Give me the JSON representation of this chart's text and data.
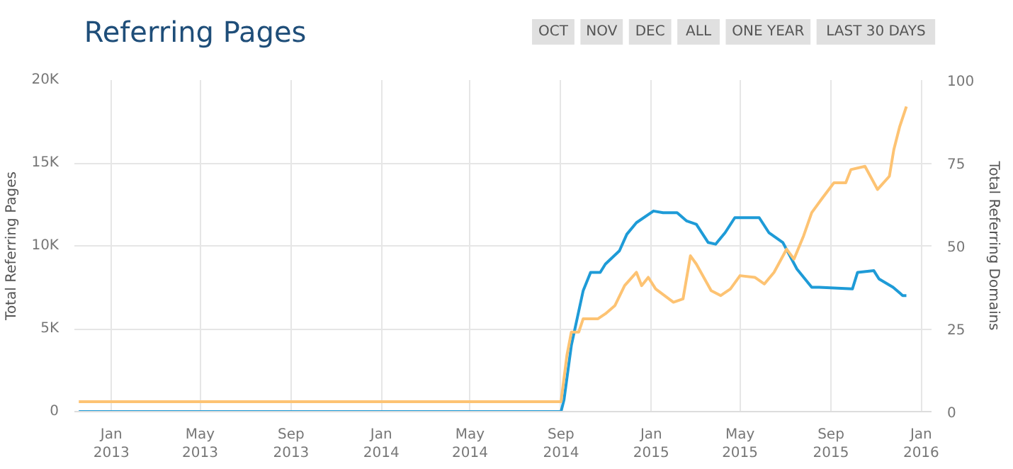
{
  "chart_data": {
    "type": "line",
    "title": "Referring Pages",
    "annotations": [
      "OCT",
      "NOV",
      "DEC",
      "ALL",
      "ONE YEAR",
      "LAST 30 DAYS"
    ],
    "ylabel": "Total Referring Pages",
    "y2label": "Total Referring Domains",
    "xlim": [
      "2012-11-12",
      "2016-01-15"
    ],
    "xticks": [
      {
        "value": "2013-01-01",
        "label": "Jan\n2013"
      },
      {
        "value": "2013-05-01",
        "label": "May\n2013"
      },
      {
        "value": "2013-09-01",
        "label": "Sep\n2013"
      },
      {
        "value": "2014-01-01",
        "label": "Jan\n2014"
      },
      {
        "value": "2014-05-01",
        "label": "May\n2014"
      },
      {
        "value": "2014-09-01",
        "label": "Sep\n2014"
      },
      {
        "value": "2015-01-01",
        "label": "Jan\n2015"
      },
      {
        "value": "2015-05-01",
        "label": "May\n2015"
      },
      {
        "value": "2015-09-01",
        "label": "Sep\n2015"
      },
      {
        "value": "2016-01-01",
        "label": "Jan\n2016"
      }
    ],
    "ylim": [
      0,
      20000
    ],
    "yticks": [
      0,
      {
        "value": 5000,
        "label": "5K"
      },
      {
        "value": 10000,
        "label": "10K"
      },
      {
        "value": 15000,
        "label": "15K"
      },
      {
        "value": 20000,
        "label": "20K"
      }
    ],
    "y2lim": [
      0,
      100
    ],
    "y2ticks": [
      0,
      25,
      50,
      75,
      100
    ],
    "grid": true,
    "marker": "none",
    "line_style": "solid",
    "series": [
      {
        "color": "#1e9bd7",
        "x": [
          "2012-11-18",
          "2014-09-01",
          "2014-09-05",
          "2014-09-15",
          "2014-10-01",
          "2014-10-11",
          "2014-10-24",
          "2014-10-31",
          "2014-11-19",
          "2014-11-29",
          "2014-12-12",
          "2015-01-04",
          "2015-01-17",
          "2015-02-05",
          "2015-02-18",
          "2015-03-03",
          "2015-03-19",
          "2015-03-29",
          "2015-04-11",
          "2015-04-24",
          "2015-05-27",
          "2015-06-09",
          "2015-06-28",
          "2015-07-17",
          "2015-08-06",
          "2015-08-16",
          "2015-09-30",
          "2015-10-07",
          "2015-10-29",
          "2015-11-05",
          "2015-11-24",
          "2015-12-07",
          "2015-12-12"
        ],
        "values": [
          0,
          0,
          700,
          4000,
          7300,
          8400,
          8400,
          8900,
          9700,
          10700,
          11400,
          12100,
          12000,
          12000,
          11500,
          11300,
          10200,
          10100,
          10800,
          11700,
          11700,
          10800,
          10200,
          8600,
          7500,
          7500,
          7400,
          8400,
          8500,
          8000,
          7500,
          7000,
          7000
        ]
      },
      {
        "color": "#fdc373",
        "axis": "y2",
        "x": [
          "2012-11-18",
          "2014-09-01",
          "2014-09-09",
          "2014-09-15",
          "2014-09-25",
          "2014-10-01",
          "2014-10-21",
          "2014-10-31",
          "2014-11-13",
          "2014-11-26",
          "2014-12-12",
          "2014-12-19",
          "2014-12-28",
          "2015-01-07",
          "2015-01-31",
          "2015-02-13",
          "2015-02-23",
          "2015-03-03",
          "2015-03-13",
          "2015-03-23",
          "2015-04-05",
          "2015-04-18",
          "2015-05-01",
          "2015-05-21",
          "2015-06-03",
          "2015-06-16",
          "2015-07-03",
          "2015-07-13",
          "2015-07-26",
          "2015-08-06",
          "2015-08-19",
          "2015-09-05",
          "2015-09-21",
          "2015-09-28",
          "2015-10-17",
          "2015-11-03",
          "2015-11-19",
          "2015-11-25",
          "2015-12-03",
          "2015-12-12"
        ],
        "values": [
          3,
          3,
          17,
          24,
          24,
          28,
          28,
          29.5,
          32,
          38,
          42,
          38,
          40.5,
          37,
          33,
          34,
          47,
          44.5,
          40.5,
          36.5,
          35,
          37,
          41,
          40.5,
          38.5,
          42,
          49,
          46,
          53,
          60,
          64,
          69,
          69,
          73,
          74,
          67,
          71,
          79,
          86,
          92
        ]
      }
    ]
  }
}
